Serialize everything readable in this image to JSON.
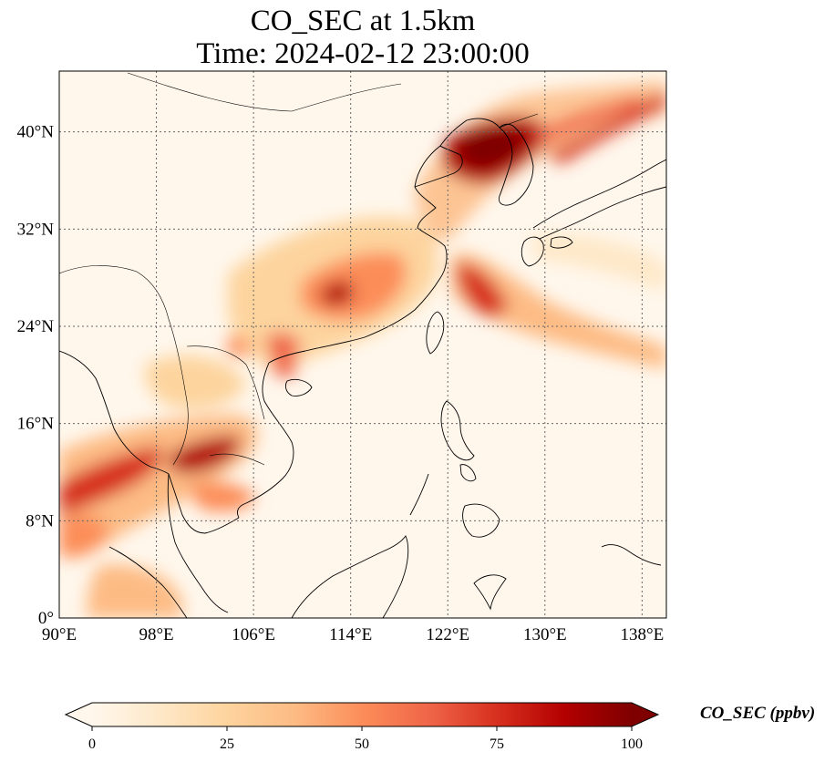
{
  "title_line1": "CO_SEC at 1.5km",
  "title_line2": "Time: 2024-02-12 23:00:00",
  "map": {
    "projection": "PlateCarree",
    "lon_range": [
      90,
      140
    ],
    "lat_range": [
      0,
      45
    ],
    "lat_ticks": [
      {
        "value": 0,
        "label": "0°"
      },
      {
        "value": 8,
        "label": "8°N"
      },
      {
        "value": 16,
        "label": "16°N"
      },
      {
        "value": 24,
        "label": "24°N"
      },
      {
        "value": 32,
        "label": "32°N"
      },
      {
        "value": 40,
        "label": "40°N"
      }
    ],
    "lon_ticks": [
      {
        "value": 90,
        "label": "90°E"
      },
      {
        "value": 98,
        "label": "98°E"
      },
      {
        "value": 106,
        "label": "106°E"
      },
      {
        "value": 114,
        "label": "114°E"
      },
      {
        "value": 122,
        "label": "122°E"
      },
      {
        "value": 130,
        "label": "130°E"
      },
      {
        "value": 138,
        "label": "138°E"
      }
    ],
    "gridlines": "dotted",
    "colormap": "OrRd",
    "color_ramp": [
      "#fff7ec",
      "#fee8c8",
      "#fdd49e",
      "#fdbb84",
      "#fc8d59",
      "#ef6548",
      "#d7301f",
      "#b30000",
      "#7f0000"
    ]
  },
  "colorbar": {
    "min": 0,
    "max": 100,
    "extend": "both",
    "ticks": [
      {
        "value": 0,
        "label": "0"
      },
      {
        "value": 25,
        "label": "25"
      },
      {
        "value": 50,
        "label": "50"
      },
      {
        "value": 75,
        "label": "75"
      },
      {
        "value": 100,
        "label": "100"
      }
    ],
    "label": "CO_SEC (ppbv)"
  }
}
